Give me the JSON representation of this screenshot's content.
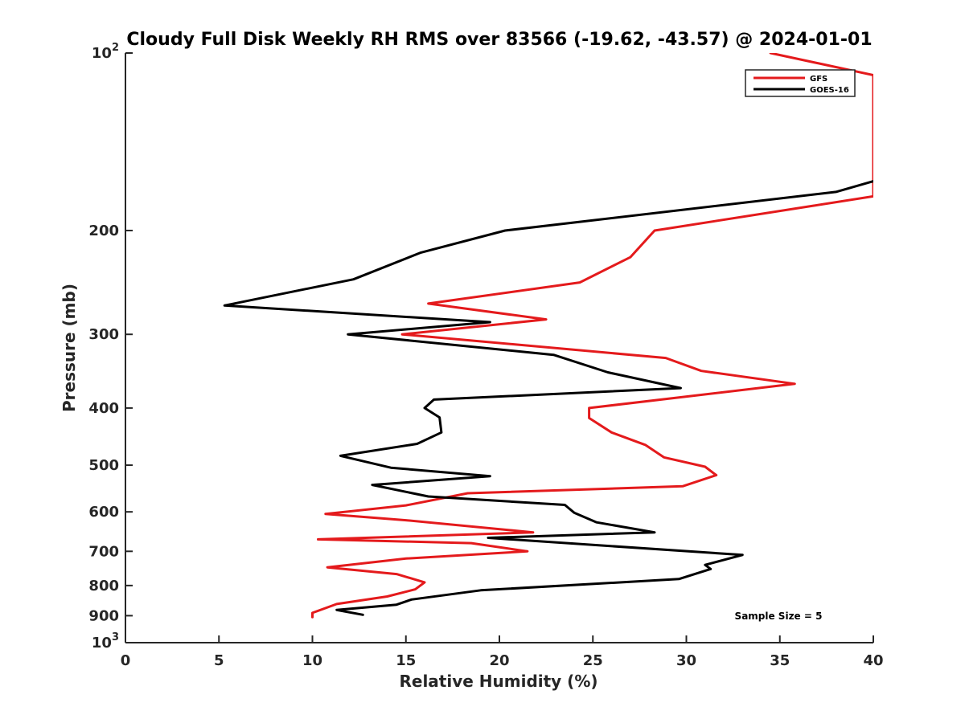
{
  "chart_data": {
    "type": "line",
    "title": "Cloudy Full Disk Weekly RH RMS over 83566 (-19.62, -43.57) @ 2024-01-01",
    "xlabel": "Relative Humidity (%)",
    "ylabel": "Pressure (mb)",
    "xlim": [
      0,
      40
    ],
    "ylim": [
      100,
      1000
    ],
    "yscale": "log",
    "y_reversed": true,
    "grid": false,
    "legend_position": "top-right",
    "x_ticks": [
      "0",
      "5",
      "10",
      "15",
      "20",
      "25",
      "30",
      "35",
      "40"
    ],
    "y_ticks": [
      {
        "value": 100,
        "label": "10",
        "sup": "2"
      },
      {
        "value": 200,
        "label": "200",
        "sup": ""
      },
      {
        "value": 300,
        "label": "300",
        "sup": ""
      },
      {
        "value": 400,
        "label": "400",
        "sup": ""
      },
      {
        "value": 500,
        "label": "500",
        "sup": ""
      },
      {
        "value": 600,
        "label": "600",
        "sup": ""
      },
      {
        "value": 700,
        "label": "700",
        "sup": ""
      },
      {
        "value": 800,
        "label": "800",
        "sup": ""
      },
      {
        "value": 900,
        "label": "900",
        "sup": ""
      },
      {
        "value": 1000,
        "label": "10",
        "sup": "3"
      }
    ],
    "series": [
      {
        "name": "GFS",
        "color": "#e41a1c",
        "points": [
          [
            34.5,
            100
          ],
          [
            40.0,
            109
          ],
          [
            40.0,
            175
          ],
          [
            28.3,
            200
          ],
          [
            27.0,
            222
          ],
          [
            24.3,
            245
          ],
          [
            16.2,
            266
          ],
          [
            22.5,
            283
          ],
          [
            14.8,
            300
          ],
          [
            28.9,
            329
          ],
          [
            30.8,
            346
          ],
          [
            35.8,
            364
          ],
          [
            24.8,
            400
          ],
          [
            24.8,
            416
          ],
          [
            26.0,
            440
          ],
          [
            27.8,
            462
          ],
          [
            28.8,
            485
          ],
          [
            31.0,
            503
          ],
          [
            31.6,
            520
          ],
          [
            29.8,
            543
          ],
          [
            18.3,
            558
          ],
          [
            15.0,
            585
          ],
          [
            10.7,
            605
          ],
          [
            15.0,
            620
          ],
          [
            21.8,
            650
          ],
          [
            10.3,
            668
          ],
          [
            18.5,
            678
          ],
          [
            21.5,
            700
          ],
          [
            15.0,
            720
          ],
          [
            10.8,
            745
          ],
          [
            14.5,
            765
          ],
          [
            16.0,
            790
          ],
          [
            15.5,
            812
          ],
          [
            14.0,
            835
          ],
          [
            11.3,
            860
          ],
          [
            10.0,
            890
          ],
          [
            10.0,
            905
          ]
        ]
      },
      {
        "name": "GOES-16",
        "color": "#000000",
        "points": [
          [
            40.0,
            165
          ],
          [
            38.0,
            172
          ],
          [
            20.3,
            200
          ],
          [
            15.8,
            218
          ],
          [
            12.2,
            242
          ],
          [
            5.3,
            268
          ],
          [
            19.5,
            286
          ],
          [
            11.9,
            300
          ],
          [
            22.9,
            325
          ],
          [
            25.8,
            348
          ],
          [
            29.7,
            370
          ],
          [
            16.5,
            387
          ],
          [
            16.0,
            400
          ],
          [
            16.8,
            415
          ],
          [
            16.9,
            440
          ],
          [
            15.6,
            460
          ],
          [
            11.5,
            482
          ],
          [
            14.2,
            505
          ],
          [
            19.5,
            522
          ],
          [
            13.2,
            540
          ],
          [
            16.2,
            565
          ],
          [
            23.5,
            584
          ],
          [
            24.0,
            602
          ],
          [
            25.2,
            625
          ],
          [
            28.3,
            650
          ],
          [
            19.4,
            664
          ],
          [
            33.0,
            710
          ],
          [
            31.0,
            738
          ],
          [
            31.3,
            750
          ],
          [
            29.6,
            780
          ],
          [
            19.0,
            815
          ],
          [
            15.3,
            845
          ],
          [
            14.5,
            862
          ],
          [
            11.3,
            880
          ],
          [
            12.7,
            897
          ]
        ]
      }
    ],
    "annotation": "Sample Size = 5"
  }
}
